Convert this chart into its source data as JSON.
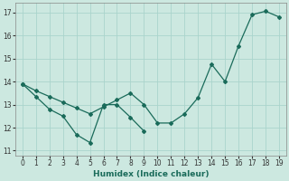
{
  "xlabel": "Humidex (Indice chaleur)",
  "background_color": "#cce8e0",
  "grid_color": "#aad4cc",
  "line_color": "#1a6b5a",
  "xlim": [
    -0.5,
    19.5
  ],
  "ylim": [
    10.8,
    17.4
  ],
  "xticks": [
    0,
    1,
    2,
    3,
    4,
    5,
    6,
    7,
    8,
    9,
    10,
    11,
    12,
    13,
    14,
    15,
    16,
    17,
    18,
    19
  ],
  "yticks": [
    11,
    12,
    13,
    14,
    15,
    16,
    17
  ],
  "series1_x": [
    0,
    1,
    2,
    3,
    4,
    5,
    6,
    7,
    8,
    9
  ],
  "series1_y": [
    13.9,
    13.35,
    12.8,
    12.5,
    11.7,
    11.35,
    13.0,
    13.0,
    12.45,
    11.85
  ],
  "series2_x": [
    0,
    1,
    2,
    3,
    4,
    5,
    6,
    7,
    8,
    9,
    10,
    11,
    12,
    13,
    14,
    15,
    16,
    17,
    18,
    19
  ],
  "series2_y": [
    13.9,
    13.6,
    13.35,
    13.1,
    12.85,
    12.6,
    12.9,
    13.2,
    13.5,
    13.0,
    12.2,
    12.2,
    12.6,
    13.3,
    14.75,
    14.0,
    15.55,
    16.9,
    17.05,
    16.8
  ]
}
